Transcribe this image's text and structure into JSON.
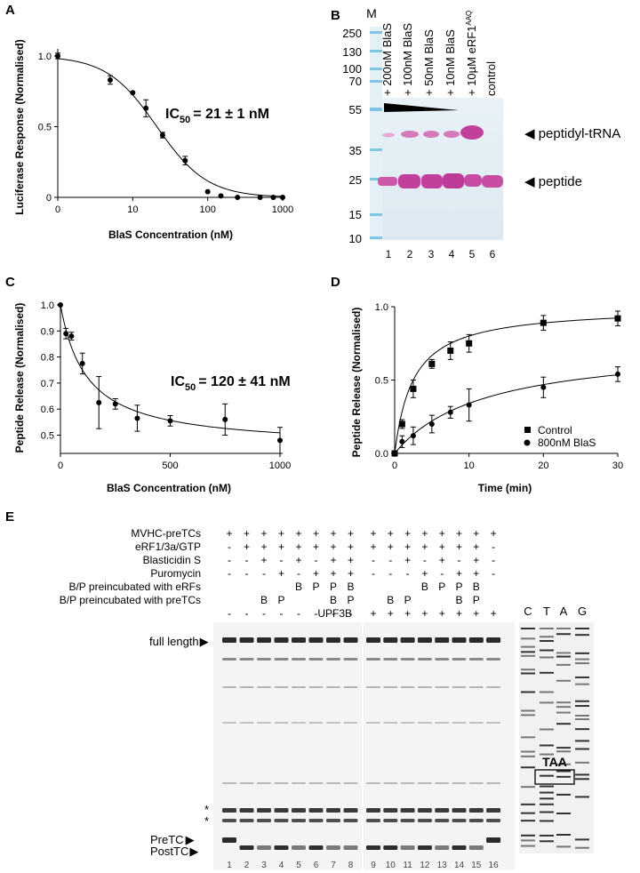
{
  "panels": {
    "A": "A",
    "B": "B",
    "C": "C",
    "D": "D",
    "E": "E"
  },
  "panelA": {
    "ylabel": "Luciferase Response (Normalised)",
    "xlabel": "BlaS Concentration (nM)",
    "annotation_ic": "IC",
    "annotation_sub": "50",
    "annotation_value": "=  21 ± 1 nM",
    "yticks": [
      "0",
      "0.5",
      "1.0"
    ],
    "xticks": [
      "0",
      "10",
      "100",
      "1000"
    ]
  },
  "panelB": {
    "marker_label": "M",
    "marker_sizes": [
      "250",
      "130",
      "100",
      "70",
      "55",
      "35",
      "25",
      "15",
      "10"
    ],
    "lane_headers": [
      "+ 200nM BlaS",
      "+ 100nM BlaS",
      "+ 50nM BlaS",
      "+ 10nM BlaS",
      "+ 10µM eRF1",
      "control"
    ],
    "lane_header_sup": "AAQ",
    "lane_numbers": [
      "1",
      "2",
      "3",
      "4",
      "5",
      "6"
    ],
    "band_labels": [
      "◀ peptidyl-tRNA",
      "◀ peptide"
    ]
  },
  "panelC": {
    "ylabel": "Peptide Release (Normalised)",
    "xlabel": "BlaS Concentration (nM)",
    "annotation_ic": "IC",
    "annotation_sub": "50",
    "annotation_value": "= 120 ± 41 nM",
    "yticks": [
      "0.5",
      "0.6",
      "0.7",
      "0.8",
      "0.9",
      "1.0"
    ],
    "xticks": [
      "0",
      "500",
      "1000"
    ]
  },
  "panelD": {
    "ylabel": "Peptide Release (Normalised)",
    "xlabel": "Time (min)",
    "yticks": [
      "0.0",
      "0.5",
      "1.0"
    ],
    "xticks": [
      "0",
      "10",
      "20",
      "30"
    ],
    "legend": [
      "Control",
      "800nM BlaS"
    ]
  },
  "panelE": {
    "rows": [
      {
        "label": "MVHC-preTCs",
        "values": [
          "+",
          "+",
          "+",
          "+",
          "+",
          "+",
          "+",
          "+",
          "+",
          "+",
          "+",
          "+",
          "+",
          "+",
          "+",
          "+"
        ]
      },
      {
        "label": "eRF1/3a/GTP",
        "values": [
          "-",
          "+",
          "+",
          "+",
          "+",
          "+",
          "+",
          "+",
          "+",
          "+",
          "+",
          "+",
          "+",
          "+",
          "+",
          "-"
        ]
      },
      {
        "label": "Blasticidin S",
        "values": [
          "-",
          "-",
          "+",
          "-",
          "+",
          "-",
          "+",
          "+",
          "-",
          "-",
          "+",
          "-",
          "+",
          "-",
          "+",
          "-"
        ]
      },
      {
        "label": "Puromycin",
        "values": [
          "-",
          "-",
          "-",
          "+",
          "-",
          "+",
          "+",
          "+",
          "-",
          "-",
          "-",
          "+",
          "-",
          "+",
          "+",
          "-"
        ]
      },
      {
        "label": "B/P preincubated with eRFs",
        "values": [
          "",
          "",
          "",
          "",
          "B",
          "P",
          "P",
          "B",
          "",
          "",
          "",
          "B",
          "P",
          "P",
          "B",
          ""
        ]
      },
      {
        "label": "B/P preincubated with preTCs",
        "values": [
          "",
          "",
          "B",
          "P",
          "",
          "",
          "B",
          "P",
          "",
          "B",
          "P",
          "",
          "",
          "B",
          "P",
          ""
        ]
      },
      {
        "label": "UPF3B",
        "values": [
          "-",
          "-",
          "-",
          "-",
          "-",
          "-",
          "-",
          "-",
          "+",
          "+",
          "+",
          "+",
          "+",
          "+",
          "+",
          "+"
        ]
      }
    ],
    "lane_numbers": [
      "1",
      "2",
      "3",
      "4",
      "5",
      "6",
      "7",
      "8",
      "9",
      "10",
      "11",
      "12",
      "13",
      "14",
      "15",
      "16"
    ],
    "side_labels": {
      "full_length": "full length",
      "star1": "*",
      "star2": "*",
      "pretc": "PreTC",
      "posttc": "PostTC"
    },
    "sequencing_lanes": [
      "C",
      "T",
      "A",
      "G"
    ],
    "codon_box": "TAA"
  },
  "chart_data": [
    {
      "panel": "A",
      "type": "scatter",
      "title": "",
      "xlabel": "BlaS Concentration (nM)",
      "ylabel": "Luciferase Response (Normalised)",
      "xscale": "log",
      "xlim": [
        0,
        1000
      ],
      "ylim": [
        0,
        1.05
      ],
      "series": [
        {
          "name": "BlaS",
          "x": [
            0,
            5,
            10,
            15,
            25,
            50,
            100,
            150,
            250,
            500,
            750,
            1000
          ],
          "y": [
            1.0,
            0.83,
            0.74,
            0.63,
            0.44,
            0.26,
            0.04,
            0.01,
            0.0,
            0.0,
            0.0,
            0.0
          ],
          "err": [
            0.02,
            0.03,
            0.0,
            0.06,
            0.02,
            0.03,
            0.0,
            0.0,
            0.0,
            0.0,
            0.0,
            0.0
          ]
        }
      ],
      "fit": {
        "model": "hill",
        "ic50": 21,
        "hill": 1.3
      },
      "annotation": "IC50 =  21 ± 1 nM"
    },
    {
      "panel": "C",
      "type": "scatter",
      "title": "",
      "xlabel": "BlaS Concentration (nM)",
      "ylabel": "Peptide Release (Normalised)",
      "xlim": [
        0,
        1000
      ],
      "ylim": [
        0.45,
        1.0
      ],
      "series": [
        {
          "name": "BlaS",
          "x": [
            0,
            25,
            50,
            100,
            175,
            250,
            350,
            500,
            750,
            1000
          ],
          "y": [
            1.0,
            0.89,
            0.88,
            0.775,
            0.625,
            0.62,
            0.565,
            0.555,
            0.56,
            0.48
          ],
          "err": [
            0.0,
            0.02,
            0.015,
            0.04,
            0.1,
            0.02,
            0.05,
            0.02,
            0.06,
            0.05
          ]
        }
      ],
      "fit": {
        "model": "ic50",
        "ic50": 120,
        "bottom": 0.45
      },
      "annotation": "IC50 = 120 ± 41 nM"
    },
    {
      "panel": "D",
      "type": "scatter",
      "title": "",
      "xlabel": "Time (min)",
      "ylabel": "Peptide Release (Normalised)",
      "xlim": [
        0,
        30
      ],
      "ylim": [
        0,
        1.0
      ],
      "series": [
        {
          "name": "Control",
          "marker": "square",
          "x": [
            0,
            1,
            2.5,
            5,
            7.5,
            10,
            20,
            30
          ],
          "y": [
            0.0,
            0.2,
            0.44,
            0.61,
            0.7,
            0.75,
            0.89,
            0.92
          ],
          "err": [
            0.0,
            0.03,
            0.06,
            0.03,
            0.06,
            0.06,
            0.05,
            0.05
          ],
          "fit": {
            "vmax": 1.0,
            "k_half": 2.5
          }
        },
        {
          "name": "800nM BlaS",
          "marker": "circle",
          "x": [
            0,
            1,
            2.5,
            5,
            7.5,
            10,
            20,
            30
          ],
          "y": [
            0.0,
            0.08,
            0.12,
            0.2,
            0.28,
            0.33,
            0.45,
            0.54
          ],
          "err": [
            0.0,
            0.04,
            0.06,
            0.06,
            0.04,
            0.11,
            0.07,
            0.05
          ],
          "fit": {
            "vmax": 0.75,
            "k_half": 12
          }
        }
      ]
    }
  ]
}
